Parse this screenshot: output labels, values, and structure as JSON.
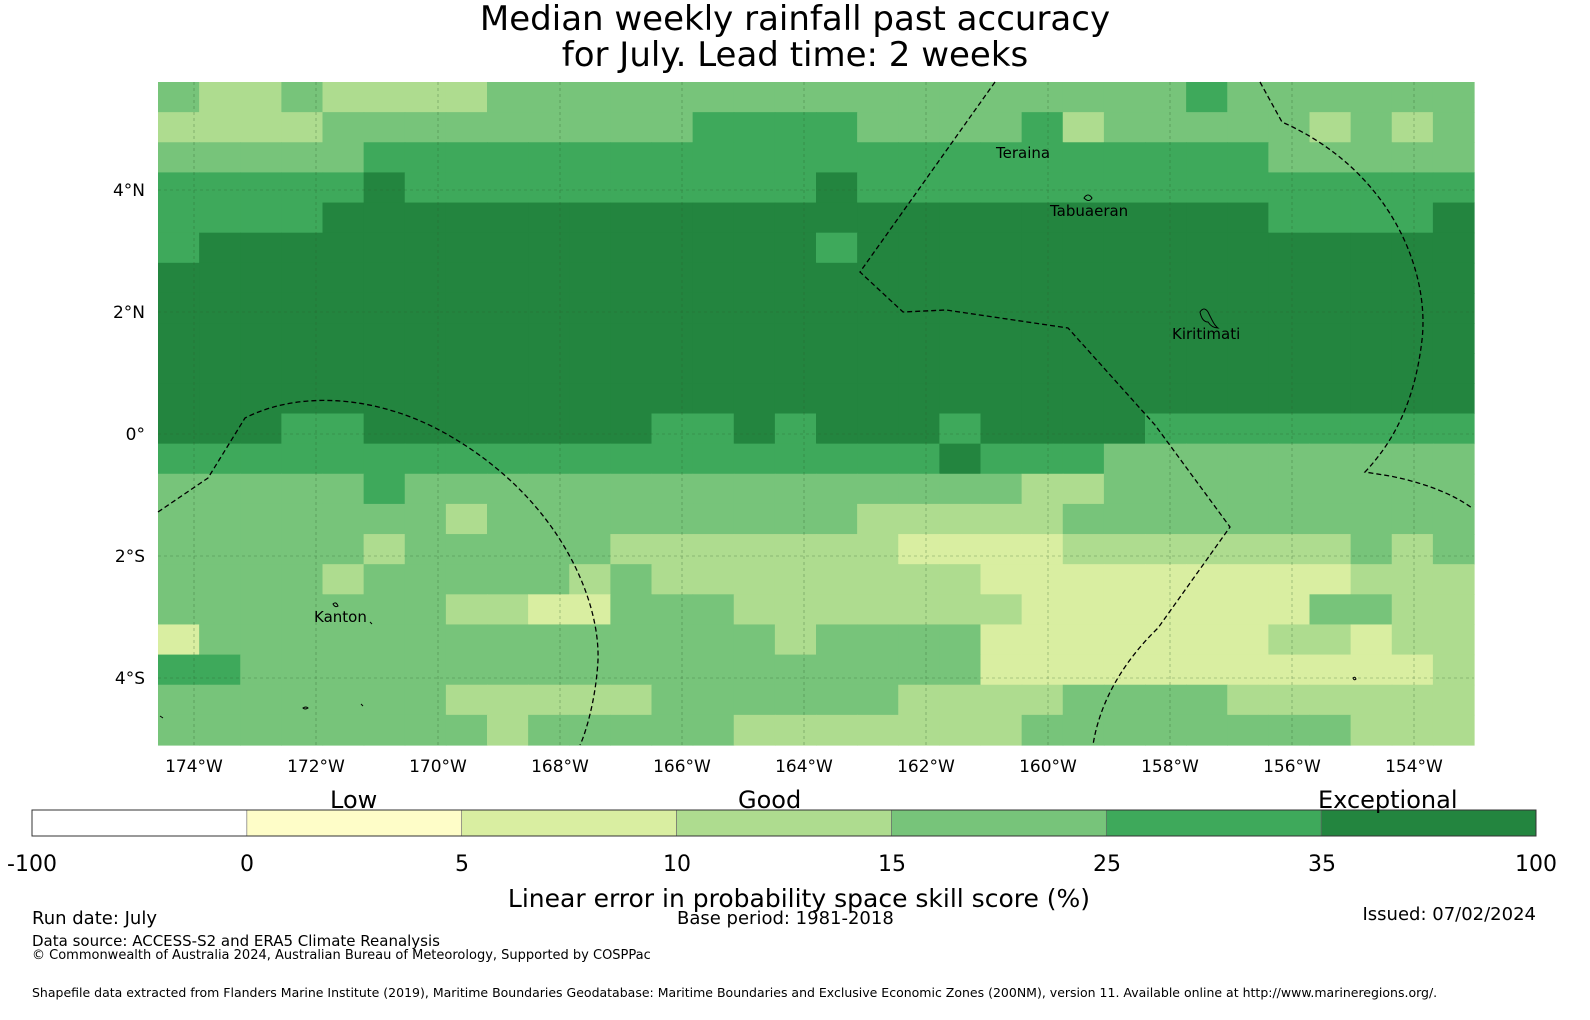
{
  "title": [
    "Median weekly rainfall past accuracy",
    "for July. Lead time: 2 weeks"
  ],
  "lon_ticks": [
    "174°W",
    "172°W",
    "170°W",
    "168°W",
    "166°W",
    "164°W",
    "162°W",
    "160°W",
    "158°W",
    "156°W",
    "154°W"
  ],
  "lat_ticks": [
    "4°N",
    "2°N",
    "0°",
    "2°S",
    "4°S"
  ],
  "places": [
    "Teraina",
    "Tabuaeran",
    "Kiritimati",
    "Kanton"
  ],
  "colorbar": {
    "category_labels": [
      "Low",
      "Good",
      "Exceptional"
    ],
    "bounds": [
      "-100",
      "0",
      "5",
      "10",
      "15",
      "25",
      "35",
      "100"
    ],
    "colors": [
      "#ffffff",
      "#fefdc8",
      "#d9eea1",
      "#aedc8f",
      "#77c47a",
      "#3ea95b",
      "#23853f"
    ],
    "title": "Linear error in probability space skill score (%)"
  },
  "footer": {
    "run_date": "Run date: July",
    "base_period": "Base period: 1981-2018",
    "issued": "Issued: 07/02/2024",
    "data_source": "Data source: ACCESS-S2 and ERA5 Climate Reanalysis",
    "copyright": "© Commonwealth of Australia 2024, Australian Bureau of Meteorology, Supported by COSPPac",
    "shapefile": "Shapefile data extracted from Flanders Marine Institute (2019), Maritime Boundaries Geodatabase: Maritime Boundaries and Exclusive Economic Zones (200NM), version 11. Available online at http://www.marineregions.org/."
  },
  "grid_rows": [
    "43343333444444444444444445444444",
    "33334444444445555444453444443434",
    "44444555555555555555555555544444",
    "55555655555555556555555555555555",
    "55556666666666666666666666655556",
    "56666666666666665666666666666666",
    "66666666666666666666666666666666",
    "66666666666666666666666666666666",
    "66666666666666666666666666666666",
    "66666666666666666666666666666666",
    "66666666666666666666666666666666",
    "66655666666655656665666655555555",
    "55555555555555555556555444444444",
    "44444544444444444444433444444444",
    "44444443444444444333334444444444",
    "44444344444333333322223333333434",
    "44443444443433333333222222222333",
    "44444443322444333333322222224433",
    "24444444444444434444222222233233",
    "55444444444444444444222222222223",
    "44444443333344444433334444333333",
    "44444444344444333333344444444333"
  ]
}
